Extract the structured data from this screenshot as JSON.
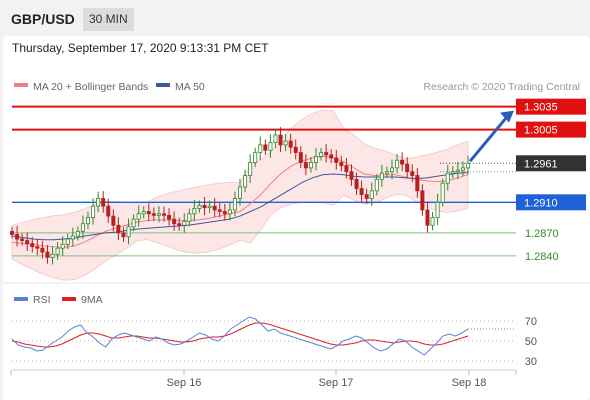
{
  "header": {
    "symbol": "GBP/USD",
    "timeframe": "30 MIN",
    "datetime": "Thursday, September 17, 2020 9:13:31 PM CET"
  },
  "colors": {
    "bb_fill": "#fde6e6",
    "ma20": "#f08080",
    "ma50": "#3a5a98",
    "resistance": "#e01010",
    "support_blue": "#2060d8",
    "support_green": "#7ec07e",
    "candle": "#2d8a2d",
    "candle_down": "#b82020",
    "rsi": "#5a80d8",
    "rsi_ma": "#e02020",
    "arrow": "#2a5cb8",
    "last_price": "#333333"
  },
  "chart_data": [
    {
      "type": "candlestick",
      "legend": [
        {
          "label": "MA 20 + Bollinger Bands",
          "color": "#f08080"
        },
        {
          "label": "MA 50",
          "color": "#3a5a98"
        }
      ],
      "watermark": "Research © 2020 Trading Central",
      "levels": [
        {
          "value": 1.3035,
          "label": "1.3035",
          "kind": "resistance"
        },
        {
          "value": 1.3005,
          "label": "1.3005",
          "kind": "resistance"
        },
        {
          "value": 1.2961,
          "label": "1.2961",
          "kind": "last"
        },
        {
          "value": 1.291,
          "label": "1.2910",
          "kind": "pivot"
        },
        {
          "value": 1.287,
          "label": "1.2870",
          "kind": "support"
        },
        {
          "value": 1.284,
          "label": "1.2840",
          "kind": "support"
        }
      ],
      "ylim": [
        1.2815,
        1.3045
      ],
      "x_ticks": [
        "Sep 16",
        "Sep 17",
        "Sep 18"
      ],
      "closes": [
        1.2868,
        1.2862,
        1.286,
        1.2856,
        1.2852,
        1.285,
        1.2845,
        1.2838,
        1.2842,
        1.285,
        1.2855,
        1.2862,
        1.2866,
        1.2872,
        1.2882,
        1.289,
        1.2905,
        1.2915,
        1.2905,
        1.2892,
        1.288,
        1.287,
        1.2865,
        1.2878,
        1.2888,
        1.2895,
        1.2898,
        1.2895,
        1.2893,
        1.2895,
        1.2893,
        1.2888,
        1.2882,
        1.288,
        1.2885,
        1.2895,
        1.2902,
        1.2906,
        1.2903,
        1.2905,
        1.29,
        1.2898,
        1.2895,
        1.29,
        1.2915,
        1.293,
        1.2945,
        1.2962,
        1.2975,
        1.2985,
        1.2978,
        1.2988,
        1.2998,
        1.2985,
        1.299,
        1.2982,
        1.2975,
        1.2962,
        1.2955,
        1.2962,
        1.297,
        1.2975,
        1.2972,
        1.2968,
        1.2962,
        1.2958,
        1.295,
        1.294,
        1.2928,
        1.292,
        1.2915,
        1.2925,
        1.294,
        1.2948,
        1.295,
        1.2955,
        1.2965,
        1.296,
        1.295,
        1.2945,
        1.2925,
        1.29,
        1.288,
        1.289,
        1.291,
        1.2935,
        1.2948,
        1.295,
        1.2952,
        1.2955,
        1.2961
      ],
      "ma20": [
        1.2858,
        1.2856,
        1.2855,
        1.2853,
        1.2852,
        1.2851,
        1.2853,
        1.2858,
        1.2865,
        1.2872,
        1.2876,
        1.288,
        1.2884,
        1.2886,
        1.2887,
        1.2887,
        1.2886,
        1.2886,
        1.2887,
        1.2889,
        1.2892,
        1.2895,
        1.2898,
        1.2908,
        1.292,
        1.2935,
        1.2948,
        1.2958,
        1.2964,
        1.2968,
        1.297,
        1.2968,
        1.2963,
        1.2955,
        1.2947,
        1.2945,
        1.2946,
        1.2946,
        1.2943,
        1.294,
        1.2938,
        1.2937,
        1.2938,
        1.2942,
        1.2946
      ],
      "ma50": [
        1.2866,
        1.2864,
        1.2862,
        1.2861,
        1.2861,
        1.2862,
        1.2863,
        1.2866,
        1.2868,
        1.287,
        1.2871,
        1.2873,
        1.2875,
        1.2876,
        1.2877,
        1.2878,
        1.2879,
        1.288,
        1.2882,
        1.2884,
        1.2886,
        1.2888,
        1.2892,
        1.2898,
        1.2904,
        1.2912,
        1.292,
        1.2928,
        1.2936,
        1.2942,
        1.2946,
        1.2947,
        1.2946,
        1.2944,
        1.2943,
        1.2943,
        1.2943,
        1.2943,
        1.2942,
        1.2941,
        1.2942,
        1.2944,
        1.2946,
        1.2948,
        1.2949
      ]
    },
    {
      "type": "line",
      "legend": [
        {
          "label": "RSI",
          "color": "#5a80d8"
        },
        {
          "label": "9MA",
          "color": "#e02020"
        }
      ],
      "ylim": [
        15,
        85
      ],
      "y_ticks": [
        {
          "value": 70,
          "label": "70"
        },
        {
          "value": 50,
          "label": "50"
        },
        {
          "value": 30,
          "label": "30"
        }
      ],
      "rsi": [
        52,
        46,
        44,
        43,
        40,
        41,
        46,
        50,
        54,
        60,
        64,
        66,
        58,
        54,
        48,
        44,
        52,
        56,
        58,
        56,
        54,
        52,
        50,
        54,
        52,
        48,
        46,
        47,
        50,
        54,
        58,
        56,
        52,
        50,
        55,
        62,
        66,
        70,
        74,
        72,
        66,
        60,
        62,
        58,
        56,
        54,
        52,
        50,
        48,
        46,
        44,
        42,
        45,
        50,
        52,
        55,
        53,
        48,
        43,
        40,
        42,
        47,
        52,
        50,
        44,
        40,
        36,
        42,
        48,
        55,
        57,
        55,
        58,
        62
      ],
      "rsi_ma": [
        50,
        49,
        47,
        46,
        45,
        44,
        44,
        45,
        47,
        50,
        53,
        56,
        58,
        58,
        57,
        55,
        53,
        53,
        54,
        55,
        55,
        54,
        53,
        53,
        52,
        51,
        50,
        49,
        49,
        50,
        52,
        53,
        54,
        54,
        55,
        57,
        60,
        63,
        66,
        68,
        68,
        67,
        65,
        63,
        61,
        59,
        57,
        55,
        53,
        51,
        49,
        47,
        46,
        46,
        47,
        48,
        50,
        51,
        51,
        50,
        49,
        48,
        49,
        50,
        50,
        49,
        47,
        46,
        46,
        47,
        49,
        51,
        53,
        55
      ]
    }
  ]
}
